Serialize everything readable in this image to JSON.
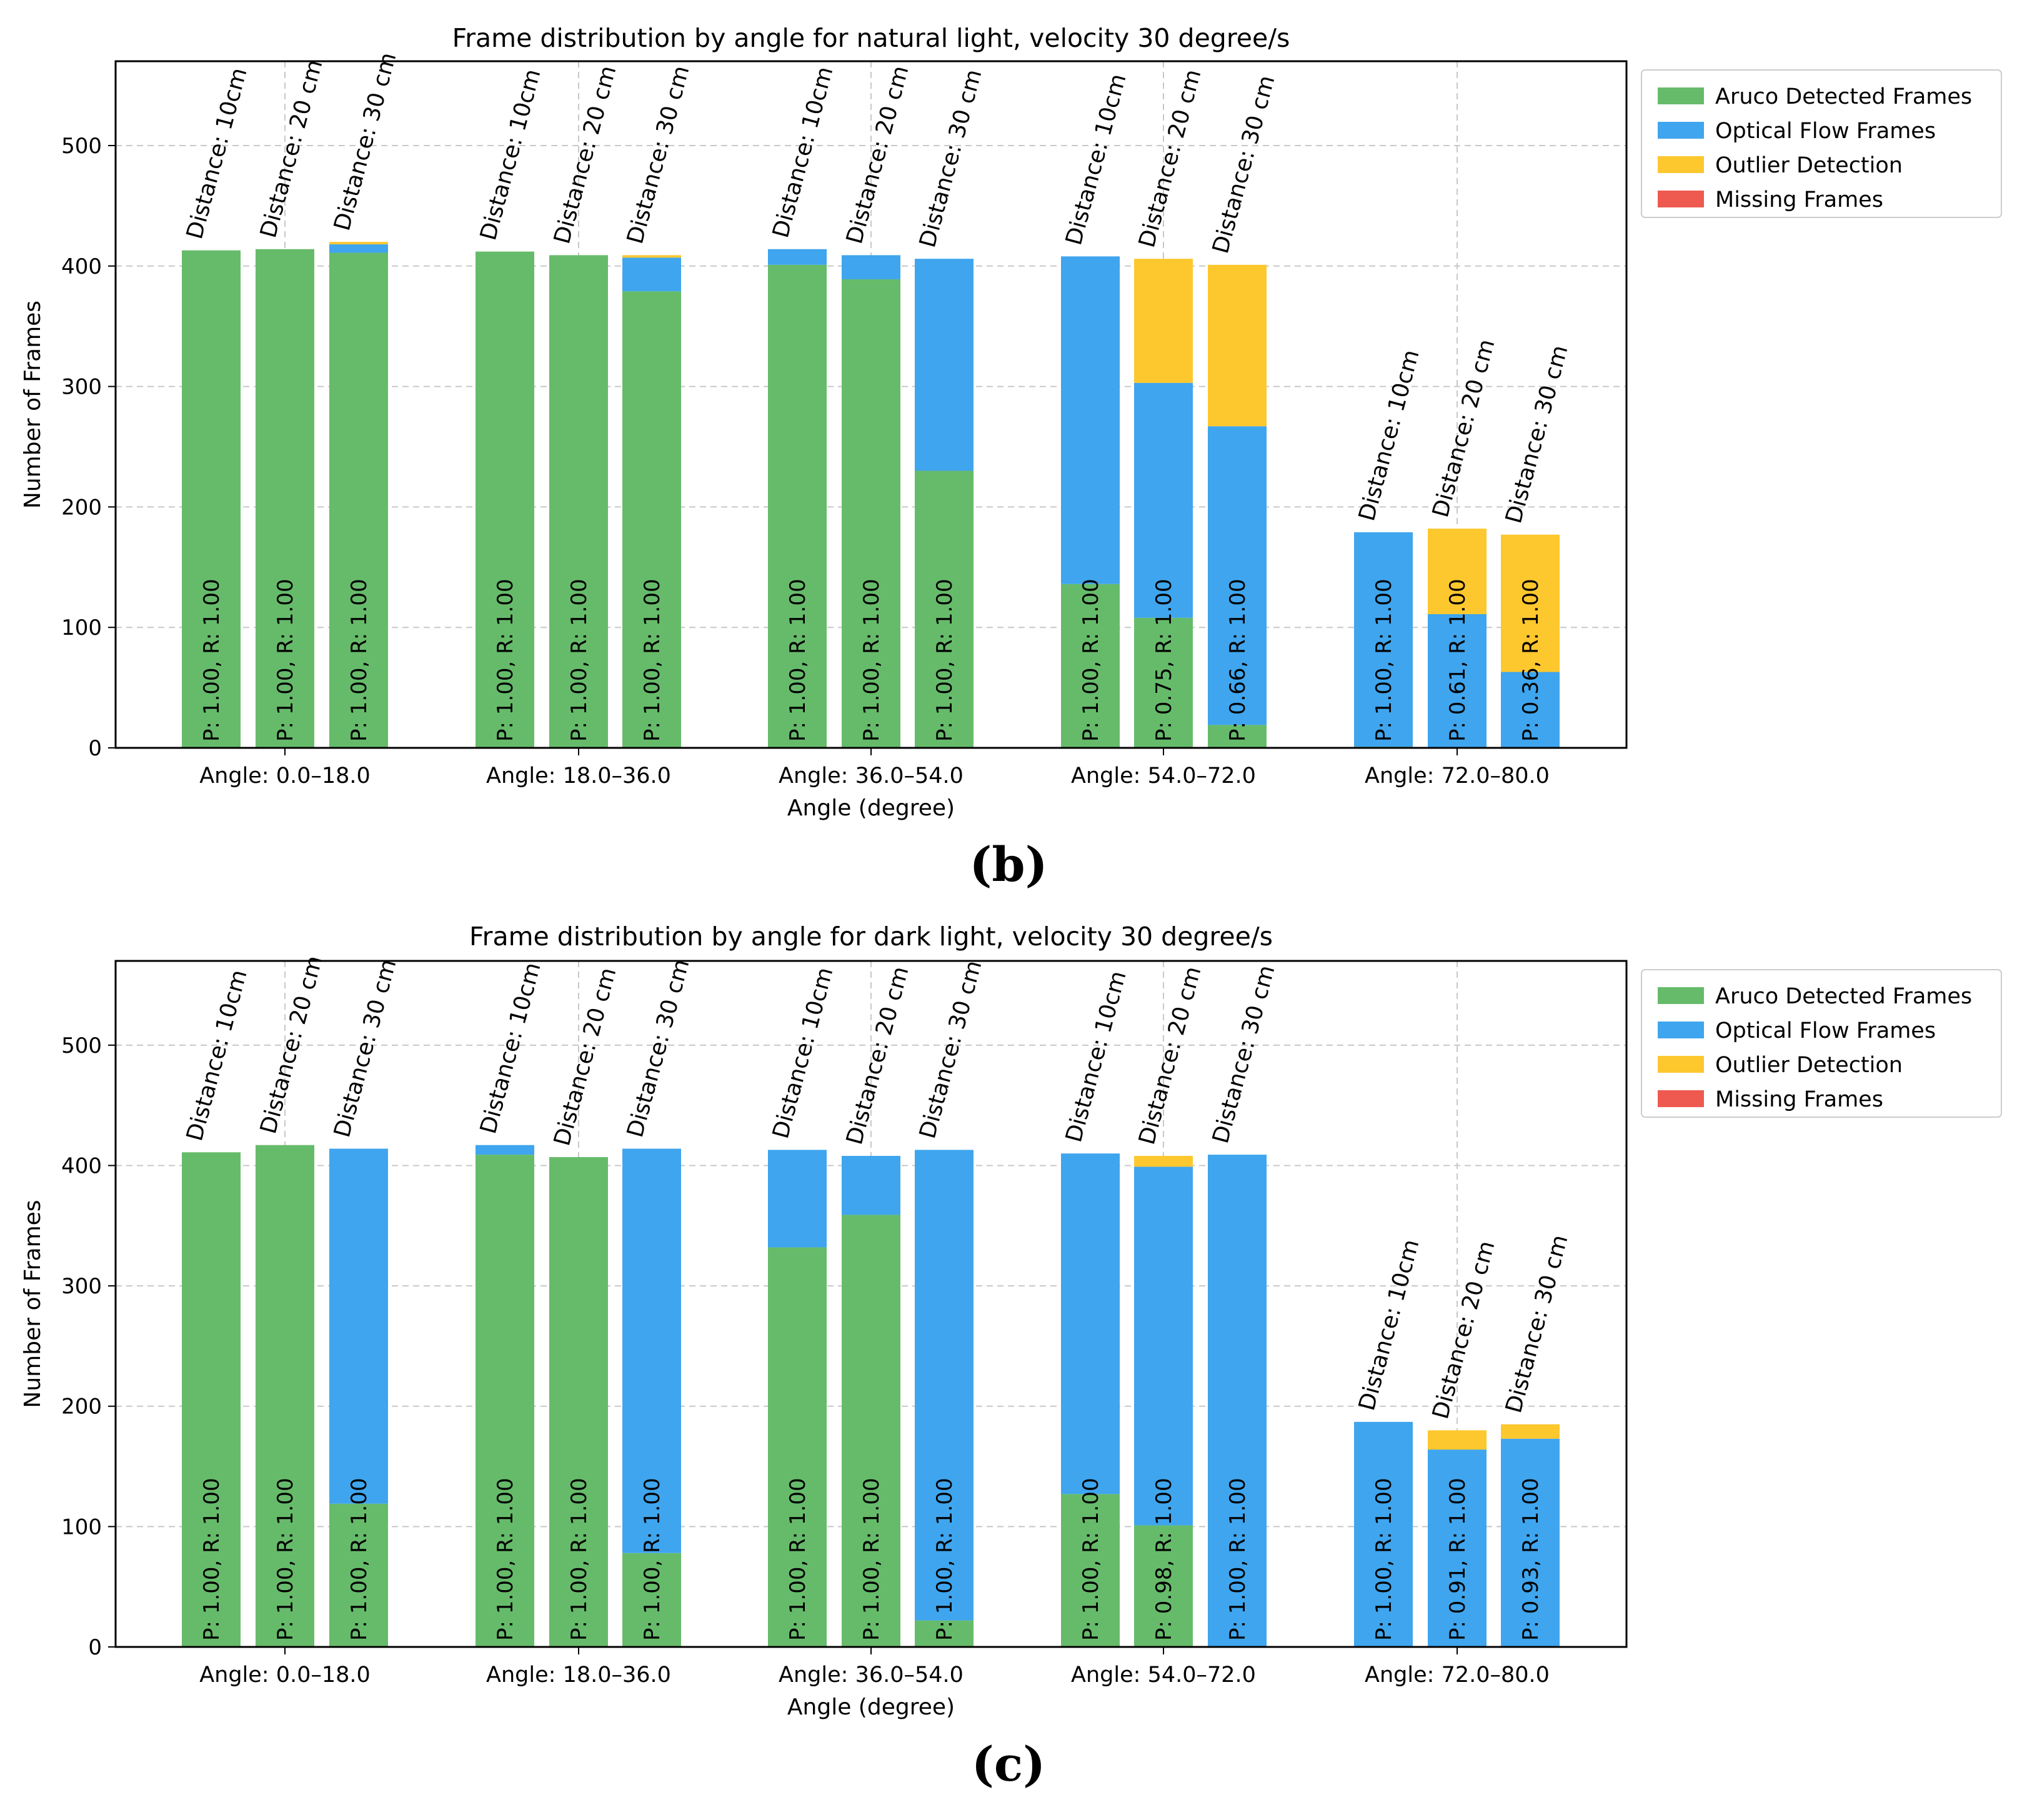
{
  "colors": {
    "aruco": "#66bb6a",
    "optical": "#3fa5ee",
    "outlier": "#fdc72e",
    "missing": "#ee5a4f",
    "grid": "#c8c8c8"
  },
  "chart_data": [
    {
      "type": "bar",
      "panel_label": "(b)",
      "title": "Frame distribution by angle for natural light, velocity 30 degree/s",
      "xlabel": "Angle (degree)",
      "ylabel": "Number of Frames",
      "ylim": [
        0,
        570
      ],
      "yticks": [
        "0",
        "100",
        "200",
        "300",
        "400",
        "500"
      ],
      "grid": true,
      "legend_position": "outside-top-right",
      "legend": [
        "Aruco Detected Frames",
        "Optical Flow Frames",
        "Outlier Detection",
        "Missing Frames"
      ],
      "categories": [
        "Angle: 0.0–18.0",
        "Angle: 18.0–36.0",
        "Angle: 36.0–54.0",
        "Angle: 54.0–72.0",
        "Angle: 72.0–80.0"
      ],
      "groups": [
        {
          "bars": [
            {
              "label": "Distance: 10cm",
              "pr": "P: 1.00, R: 1.00",
              "aruco": 413,
              "optical": 0,
              "outlier": 0,
              "missing": 0
            },
            {
              "label": "Distance: 20 cm",
              "pr": "P: 1.00, R: 1.00",
              "aruco": 414,
              "optical": 0,
              "outlier": 0,
              "missing": 0
            },
            {
              "label": "Distance: 30 cm",
              "pr": "P: 1.00, R: 1.00",
              "aruco": 411,
              "optical": 7,
              "outlier": 2,
              "missing": 0
            }
          ]
        },
        {
          "bars": [
            {
              "label": "Distance: 10cm",
              "pr": "P: 1.00, R: 1.00",
              "aruco": 412,
              "optical": 0,
              "outlier": 0,
              "missing": 0
            },
            {
              "label": "Distance: 20 cm",
              "pr": "P: 1.00, R: 1.00",
              "aruco": 409,
              "optical": 0,
              "outlier": 0,
              "missing": 0
            },
            {
              "label": "Distance: 30 cm",
              "pr": "P: 1.00, R: 1.00",
              "aruco": 379,
              "optical": 28,
              "outlier": 2,
              "missing": 0
            }
          ]
        },
        {
          "bars": [
            {
              "label": "Distance: 10cm",
              "pr": "P: 1.00, R: 1.00",
              "aruco": 401,
              "optical": 13,
              "outlier": 0,
              "missing": 0
            },
            {
              "label": "Distance: 20 cm",
              "pr": "P: 1.00, R: 1.00",
              "aruco": 389,
              "optical": 20,
              "outlier": 0,
              "missing": 0
            },
            {
              "label": "Distance: 30 cm",
              "pr": "P: 1.00, R: 1.00",
              "aruco": 230,
              "optical": 176,
              "outlier": 0,
              "missing": 0
            }
          ]
        },
        {
          "bars": [
            {
              "label": "Distance: 10cm",
              "pr": "P: 1.00, R: 1.00",
              "aruco": 136,
              "optical": 272,
              "outlier": 0,
              "missing": 0
            },
            {
              "label": "Distance: 20 cm",
              "pr": "P: 0.75, R: 1.00",
              "aruco": 108,
              "optical": 195,
              "outlier": 103,
              "missing": 0
            },
            {
              "label": "Distance: 30 cm",
              "pr": "P: 0.66, R: 1.00",
              "aruco": 19,
              "optical": 248,
              "outlier": 134,
              "missing": 0
            }
          ]
        },
        {
          "bars": [
            {
              "label": "Distance: 10cm",
              "pr": "P: 1.00, R: 1.00",
              "aruco": 1,
              "optical": 178,
              "outlier": 0,
              "missing": 0
            },
            {
              "label": "Distance: 20 cm",
              "pr": "P: 0.61, R: 1.00",
              "aruco": 0,
              "optical": 111,
              "outlier": 71,
              "missing": 0
            },
            {
              "label": "Distance: 30 cm",
              "pr": "P: 0.36, R: 1.00",
              "aruco": 0,
              "optical": 63,
              "outlier": 114,
              "missing": 0
            }
          ]
        }
      ]
    },
    {
      "type": "bar",
      "panel_label": "(c)",
      "title": "Frame distribution by angle for dark light, velocity 30 degree/s",
      "xlabel": "Angle (degree)",
      "ylabel": "Number of Frames",
      "ylim": [
        0,
        570
      ],
      "yticks": [
        "0",
        "100",
        "200",
        "300",
        "400",
        "500"
      ],
      "grid": true,
      "legend_position": "outside-top-right",
      "legend": [
        "Aruco Detected Frames",
        "Optical Flow Frames",
        "Outlier Detection",
        "Missing Frames"
      ],
      "categories": [
        "Angle: 0.0–18.0",
        "Angle: 18.0–36.0",
        "Angle: 36.0–54.0",
        "Angle: 54.0–72.0",
        "Angle: 72.0–80.0"
      ],
      "groups": [
        {
          "bars": [
            {
              "label": "Distance: 10cm",
              "pr": "P: 1.00, R: 1.00",
              "aruco": 411,
              "optical": 0,
              "outlier": 0,
              "missing": 0
            },
            {
              "label": "Distance: 20 cm",
              "pr": "P: 1.00, R: 1.00",
              "aruco": 417,
              "optical": 0,
              "outlier": 0,
              "missing": 0
            },
            {
              "label": "Distance: 30 cm",
              "pr": "P: 1.00, R: 1.00",
              "aruco": 119,
              "optical": 295,
              "outlier": 0,
              "missing": 0
            }
          ]
        },
        {
          "bars": [
            {
              "label": "Distance: 10cm",
              "pr": "P: 1.00, R: 1.00",
              "aruco": 409,
              "optical": 8,
              "outlier": 0,
              "missing": 0
            },
            {
              "label": "Distance: 20 cm",
              "pr": "P: 1.00, R: 1.00",
              "aruco": 407,
              "optical": 0,
              "outlier": 0,
              "missing": 0
            },
            {
              "label": "Distance: 30 cm",
              "pr": "P: 1.00, R: 1.00",
              "aruco": 78,
              "optical": 336,
              "outlier": 0,
              "missing": 0
            }
          ]
        },
        {
          "bars": [
            {
              "label": "Distance: 10cm",
              "pr": "P: 1.00, R: 1.00",
              "aruco": 332,
              "optical": 81,
              "outlier": 0,
              "missing": 0
            },
            {
              "label": "Distance: 20 cm",
              "pr": "P: 1.00, R: 1.00",
              "aruco": 359,
              "optical": 49,
              "outlier": 0,
              "missing": 0
            },
            {
              "label": "Distance: 30 cm",
              "pr": "P: 1.00, R: 1.00",
              "aruco": 22,
              "optical": 391,
              "outlier": 0,
              "missing": 0
            }
          ]
        },
        {
          "bars": [
            {
              "label": "Distance: 10cm",
              "pr": "P: 1.00, R: 1.00",
              "aruco": 127,
              "optical": 283,
              "outlier": 0,
              "missing": 0
            },
            {
              "label": "Distance: 20 cm",
              "pr": "P: 0.98, R: 1.00",
              "aruco": 101,
              "optical": 298,
              "outlier": 9,
              "missing": 0
            },
            {
              "label": "Distance: 30 cm",
              "pr": "P: 1.00, R: 1.00",
              "aruco": 0,
              "optical": 409,
              "outlier": 0,
              "missing": 0
            }
          ]
        },
        {
          "bars": [
            {
              "label": "Distance: 10cm",
              "pr": "P: 1.00, R: 1.00",
              "aruco": 0,
              "optical": 187,
              "outlier": 0,
              "missing": 0
            },
            {
              "label": "Distance: 20 cm",
              "pr": "P: 0.91, R: 1.00",
              "aruco": 0,
              "optical": 164,
              "outlier": 16,
              "missing": 0
            },
            {
              "label": "Distance: 30 cm",
              "pr": "P: 0.93, R: 1.00",
              "aruco": 0,
              "optical": 173,
              "outlier": 12,
              "missing": 0
            }
          ]
        }
      ]
    }
  ]
}
